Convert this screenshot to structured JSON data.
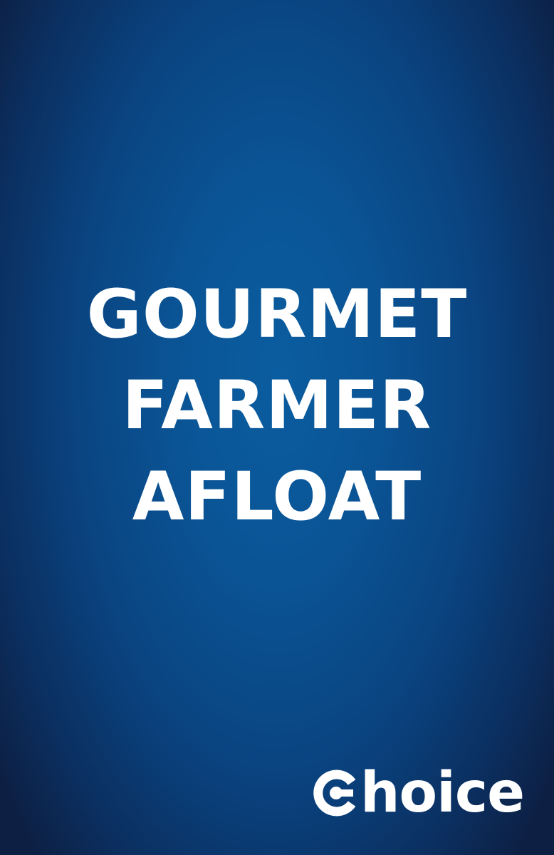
{
  "title": {
    "line1": "GOURMET",
    "line2": "FARMER",
    "line3": "AFLOAT"
  },
  "logo": {
    "text": "hoice",
    "full_text": "Choice",
    "icon": "choice-c-icon"
  },
  "colors": {
    "background_center": "#0a5da0",
    "background_edge": "#0d2044",
    "text": "#ffffff"
  }
}
